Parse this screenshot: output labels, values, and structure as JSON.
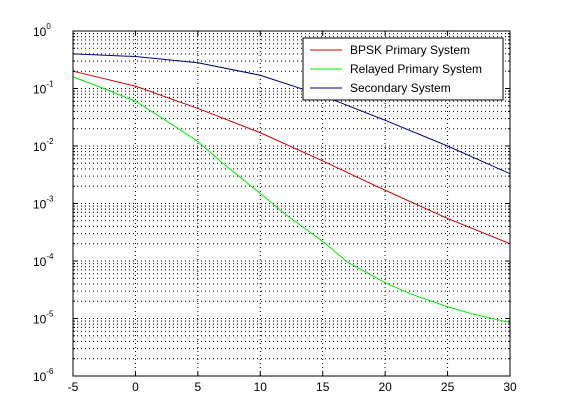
{
  "chart_data": {
    "type": "line",
    "title": "",
    "xlabel": "",
    "ylabel": "",
    "xlim": [
      -5,
      30
    ],
    "ylim": [
      1e-06,
      1
    ],
    "yscale": "log",
    "grid": "on-dotted-with-minor",
    "legend_position": "top-right",
    "x_ticks": [
      {
        "value": -5,
        "label": "-5"
      },
      {
        "value": 0,
        "label": "0"
      },
      {
        "value": 5,
        "label": "5"
      },
      {
        "value": 10,
        "label": "10"
      },
      {
        "value": 15,
        "label": "15"
      },
      {
        "value": 20,
        "label": "20"
      },
      {
        "value": 25,
        "label": "25"
      },
      {
        "value": 30,
        "label": "30"
      }
    ],
    "y_ticks": [
      {
        "value": 1,
        "base": "10",
        "exp": "0"
      },
      {
        "value": 0.1,
        "base": "10",
        "exp": "-1"
      },
      {
        "value": 0.01,
        "base": "10",
        "exp": "-2"
      },
      {
        "value": 0.001,
        "base": "10",
        "exp": "-3"
      },
      {
        "value": 0.0001,
        "base": "10",
        "exp": "-4"
      },
      {
        "value": 1e-05,
        "base": "10",
        "exp": "-5"
      },
      {
        "value": 1e-06,
        "base": "10",
        "exp": "-6"
      }
    ],
    "series": [
      {
        "name": "BPSK Primary System",
        "color": "#cc0000",
        "x": [
          -5,
          0,
          5,
          10,
          15,
          20,
          25,
          30
        ],
        "y": [
          0.2,
          0.11,
          0.045,
          0.017,
          0.0055,
          0.0017,
          0.00055,
          0.0002
        ]
      },
      {
        "name": "Relayed Primary System",
        "color": "#00ee00",
        "x": [
          -5,
          -2,
          0,
          2,
          5,
          7,
          10,
          12,
          15,
          17,
          20,
          22,
          25,
          27,
          30
        ],
        "y": [
          0.16,
          0.09,
          0.06,
          0.032,
          0.012,
          0.005,
          0.0015,
          0.00065,
          0.00022,
          9.5e-05,
          4.2e-05,
          2.7e-05,
          1.6e-05,
          1.2e-05,
          8.5e-06
        ]
      },
      {
        "name": "Secondary System",
        "color": "#000080",
        "x": [
          -5,
          0,
          5,
          10,
          15,
          20,
          25,
          30
        ],
        "y": [
          0.4,
          0.36,
          0.28,
          0.17,
          0.075,
          0.028,
          0.01,
          0.0033
        ]
      }
    ]
  }
}
